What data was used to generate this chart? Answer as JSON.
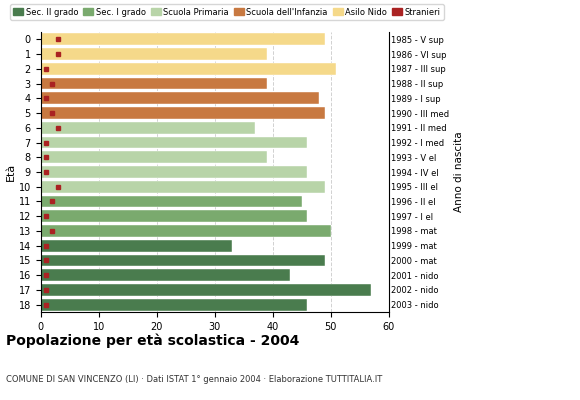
{
  "ages": [
    18,
    17,
    16,
    15,
    14,
    13,
    12,
    11,
    10,
    9,
    8,
    7,
    6,
    5,
    4,
    3,
    2,
    1,
    0
  ],
  "bar_values": [
    46,
    57,
    43,
    49,
    33,
    50,
    46,
    45,
    49,
    46,
    39,
    46,
    37,
    49,
    48,
    39,
    51,
    39,
    49
  ],
  "stranieri": [
    1,
    1,
    1,
    1,
    1,
    2,
    1,
    2,
    3,
    1,
    1,
    1,
    3,
    2,
    1,
    2,
    1,
    3,
    3
  ],
  "right_labels": [
    "1985 - V sup",
    "1986 - VI sup",
    "1987 - III sup",
    "1988 - II sup",
    "1989 - I sup",
    "1990 - III med",
    "1991 - II med",
    "1992 - I med",
    "1993 - V el",
    "1994 - IV el",
    "1995 - III el",
    "1996 - II el",
    "1997 - I el",
    "1998 - mat",
    "1999 - mat",
    "2000 - mat",
    "2001 - nido",
    "2002 - nido",
    "2003 - nido"
  ],
  "colors": {
    "sec_II": "#4a7c4e",
    "sec_I": "#7aaa6e",
    "primaria": "#b8d4a8",
    "infanzia": "#c87941",
    "nido": "#f5d98a",
    "stranieri": "#aa2222"
  },
  "title": "Popolazione per età scolastica - 2004",
  "subtitle": "COMUNE DI SAN VINCENZO (LI) · Dati ISTAT 1° gennaio 2004 · Elaborazione TUTTITALIA.IT",
  "ylabel": "Età",
  "xlim": [
    0,
    60
  ],
  "xticks": [
    0,
    10,
    20,
    30,
    40,
    50,
    60
  ],
  "legend_labels": [
    "Sec. II grado",
    "Sec. I grado",
    "Scuola Primaria",
    "Scuola dell'Infanzia",
    "Asilo Nido",
    "Stranieri"
  ]
}
